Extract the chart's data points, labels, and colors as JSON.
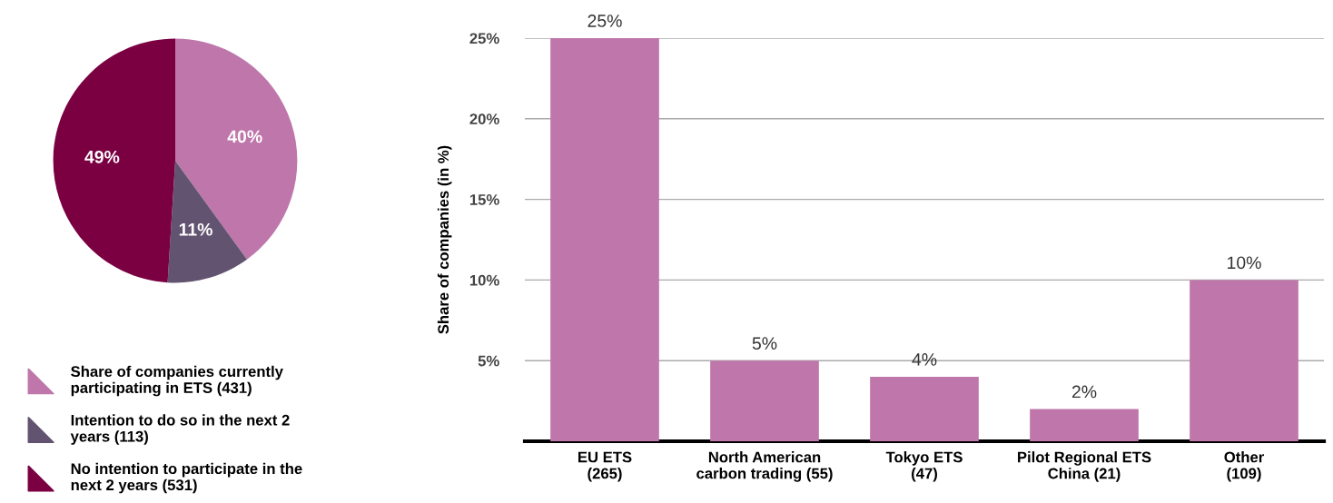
{
  "chart_data": [
    {
      "type": "pie",
      "categories": [
        "Share of companies currently\nparticipating in ETS (431)",
        "Intention to do so in the next 2\nyears (113)",
        "No intention to participate in the\nnext 2 years (531)"
      ],
      "values": [
        40,
        11,
        49
      ],
      "colors": [
        "#bf77ab",
        "#625370",
        "#7a0042"
      ],
      "value_labels": [
        "40%",
        "11%",
        "49%"
      ],
      "legend": "bottom"
    },
    {
      "type": "bar",
      "categories": [
        "EU ETS\n(265)",
        "North American\ncarbon trading (55)",
        "Tokyo ETS\n(47)",
        "Pilot Regional ETS\nChina (21)",
        "Other\n(109)"
      ],
      "values": [
        25,
        5,
        4,
        2,
        10
      ],
      "color": "#bf77ab",
      "value_labels": [
        "25%",
        "5%",
        "4%",
        "2%",
        "10%"
      ],
      "ylabel": "Share of companies (in %)",
      "ylim": [
        0,
        25
      ],
      "yticks": [
        {
          "value": 5,
          "label": "5%"
        },
        {
          "value": 10,
          "label": "10%"
        },
        {
          "value": 15,
          "label": "15%"
        },
        {
          "value": 20,
          "label": "20%"
        },
        {
          "value": 25,
          "label": "25%"
        }
      ],
      "grid": "y"
    }
  ]
}
